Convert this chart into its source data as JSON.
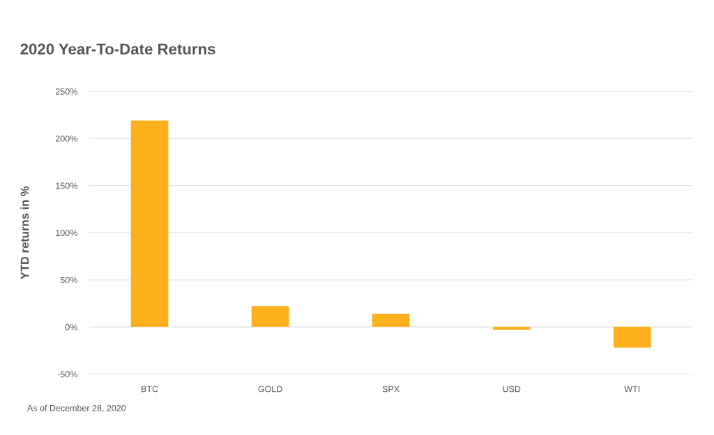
{
  "chart_data": {
    "type": "bar",
    "title": "2020 Year-To-Date Returns",
    "ylabel": "YTD returns in %",
    "categories": [
      "BTC",
      "GOLD",
      "SPX",
      "USD",
      "WTI"
    ],
    "values": [
      219,
      22,
      14,
      -3,
      -22
    ],
    "color": "#fdb01b",
    "ylim": [
      -50,
      250
    ],
    "yticks": [
      {
        "value": -50,
        "label": "-50%"
      },
      {
        "value": 0,
        "label": "0%"
      },
      {
        "value": 50,
        "label": "50%"
      },
      {
        "value": 100,
        "label": "100%"
      },
      {
        "value": 150,
        "label": "150%"
      },
      {
        "value": 200,
        "label": "200%"
      },
      {
        "value": 250,
        "label": "250%"
      }
    ],
    "grid": "y",
    "annotations": [
      "As of December 28, 2020"
    ]
  }
}
